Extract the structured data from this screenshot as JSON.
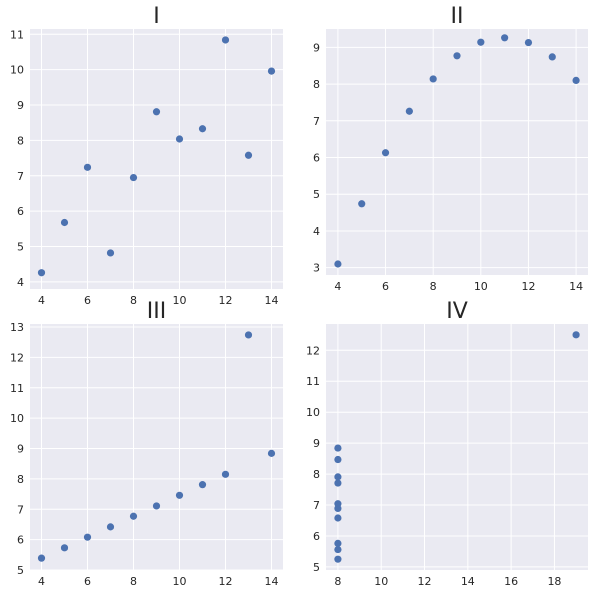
{
  "chart_data": [
    {
      "type": "scatter",
      "title": "I",
      "xlim": [
        3.5,
        14.5
      ],
      "ylim": [
        3.8,
        11.15
      ],
      "xticks": [
        4,
        6,
        8,
        10,
        12,
        14
      ],
      "yticks": [
        4,
        5,
        6,
        7,
        8,
        9,
        10,
        11
      ],
      "grid": true,
      "marker_color": "#4c72b0",
      "x": [
        4,
        5,
        6,
        7,
        8,
        9,
        10,
        11,
        12,
        13,
        14
      ],
      "y": [
        4.26,
        5.68,
        7.24,
        4.82,
        6.95,
        8.81,
        8.04,
        8.33,
        10.84,
        7.58,
        9.96
      ]
    },
    {
      "type": "scatter",
      "title": "II",
      "xlim": [
        3.5,
        14.5
      ],
      "ylim": [
        2.8,
        9.5
      ],
      "xticks": [
        4,
        6,
        8,
        10,
        12,
        14
      ],
      "yticks": [
        3,
        4,
        5,
        6,
        7,
        8,
        9
      ],
      "grid": true,
      "marker_color": "#4c72b0",
      "x": [
        4,
        5,
        6,
        7,
        8,
        9,
        10,
        11,
        12,
        13,
        14
      ],
      "y": [
        3.1,
        4.74,
        6.13,
        7.26,
        8.14,
        8.77,
        9.14,
        9.26,
        9.13,
        8.74,
        8.1
      ]
    },
    {
      "type": "scatter",
      "title": "III",
      "xlim": [
        3.5,
        14.5
      ],
      "ylim": [
        5.0,
        13.1
      ],
      "xticks": [
        4,
        6,
        8,
        10,
        12,
        14
      ],
      "yticks": [
        5,
        6,
        7,
        8,
        9,
        10,
        11,
        12,
        13
      ],
      "grid": true,
      "marker_color": "#4c72b0",
      "x": [
        4,
        5,
        6,
        7,
        8,
        9,
        10,
        11,
        12,
        13,
        14
      ],
      "y": [
        5.39,
        5.73,
        6.08,
        6.42,
        6.77,
        7.11,
        7.46,
        7.81,
        8.15,
        12.74,
        8.84
      ]
    },
    {
      "type": "scatter",
      "title": "IV",
      "xlim": [
        7.45,
        19.55
      ],
      "ylim": [
        4.9,
        12.85
      ],
      "xticks": [
        8,
        10,
        12,
        14,
        16,
        18
      ],
      "yticks": [
        5,
        6,
        7,
        8,
        9,
        10,
        11,
        12
      ],
      "grid": true,
      "marker_color": "#4c72b0",
      "x": [
        8,
        8,
        8,
        8,
        8,
        8,
        8,
        8,
        8,
        8,
        19
      ],
      "y": [
        5.25,
        5.56,
        5.76,
        6.58,
        6.89,
        7.04,
        7.71,
        7.91,
        8.47,
        8.84,
        12.5
      ]
    }
  ]
}
